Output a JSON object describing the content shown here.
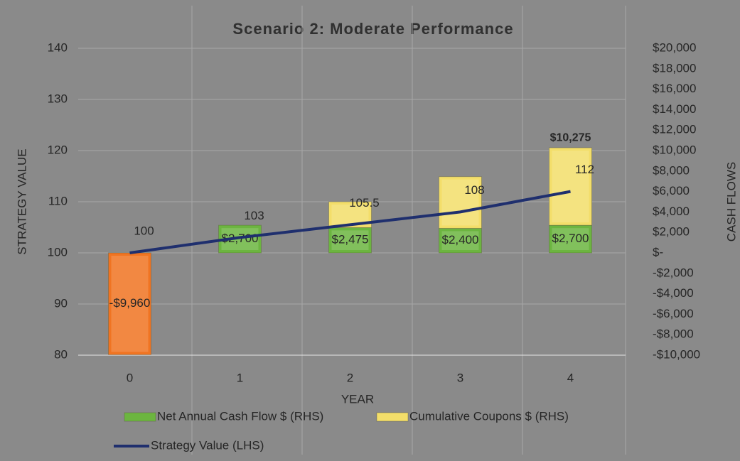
{
  "chart_data": {
    "type": "bar",
    "title": "Scenario 2: Moderate Performance",
    "xlabel": "YEAR",
    "ylabel": "STRATEGY VALUE",
    "y2label": "CASH FLOWS",
    "categories": [
      "0",
      "1",
      "2",
      "3",
      "4"
    ],
    "ylim": [
      80,
      140
    ],
    "yticks": [
      80,
      90,
      100,
      110,
      120,
      130,
      140
    ],
    "y2lim": [
      -10000,
      20000
    ],
    "y2ticks": [
      {
        "value": -10000,
        "label": "-$10,000"
      },
      {
        "value": -8000,
        "label": "-$8,000"
      },
      {
        "value": -6000,
        "label": "-$6,000"
      },
      {
        "value": -4000,
        "label": "-$4,000"
      },
      {
        "value": -2000,
        "label": "-$2,000"
      },
      {
        "value": 0,
        "label": "$-"
      },
      {
        "value": 2000,
        "label": "$2,000"
      },
      {
        "value": 4000,
        "label": "$4,000"
      },
      {
        "value": 6000,
        "label": "$6,000"
      },
      {
        "value": 8000,
        "label": "$8,000"
      },
      {
        "value": 10000,
        "label": "$10,000"
      },
      {
        "value": 12000,
        "label": "$12,000"
      },
      {
        "value": 14000,
        "label": "$14,000"
      },
      {
        "value": 16000,
        "label": "$16,000"
      },
      {
        "value": 18000,
        "label": "$18,000"
      },
      {
        "value": 20000,
        "label": "$20,000"
      }
    ],
    "grid": true,
    "series": [
      {
        "name": "Net Annual Cash Flow $ (RHS)",
        "type": "bar",
        "axis": "y2",
        "color": "#6cb540",
        "point_colors": [
          "#f07422",
          "#6cb540",
          "#6cb540",
          "#6cb540",
          "#6cb540"
        ],
        "values": [
          -9960,
          2700,
          2475,
          2400,
          2700
        ],
        "value_labels": [
          "-$9,960",
          "$2,700",
          "$2,475",
          "$2,400",
          "$2,700"
        ]
      },
      {
        "name": "Cumulative Coupons $ (RHS)",
        "type": "bar",
        "axis": "y2",
        "color": "#f3de6a",
        "values": [
          null,
          null,
          2525,
          5050,
          7575
        ]
      },
      {
        "name": "Strategy Value (LHS)",
        "type": "line",
        "color": "#1f2f6e",
        "values": [
          100,
          103,
          105.5,
          108,
          112
        ]
      }
    ],
    "annotations": [
      "$10,275"
    ]
  }
}
